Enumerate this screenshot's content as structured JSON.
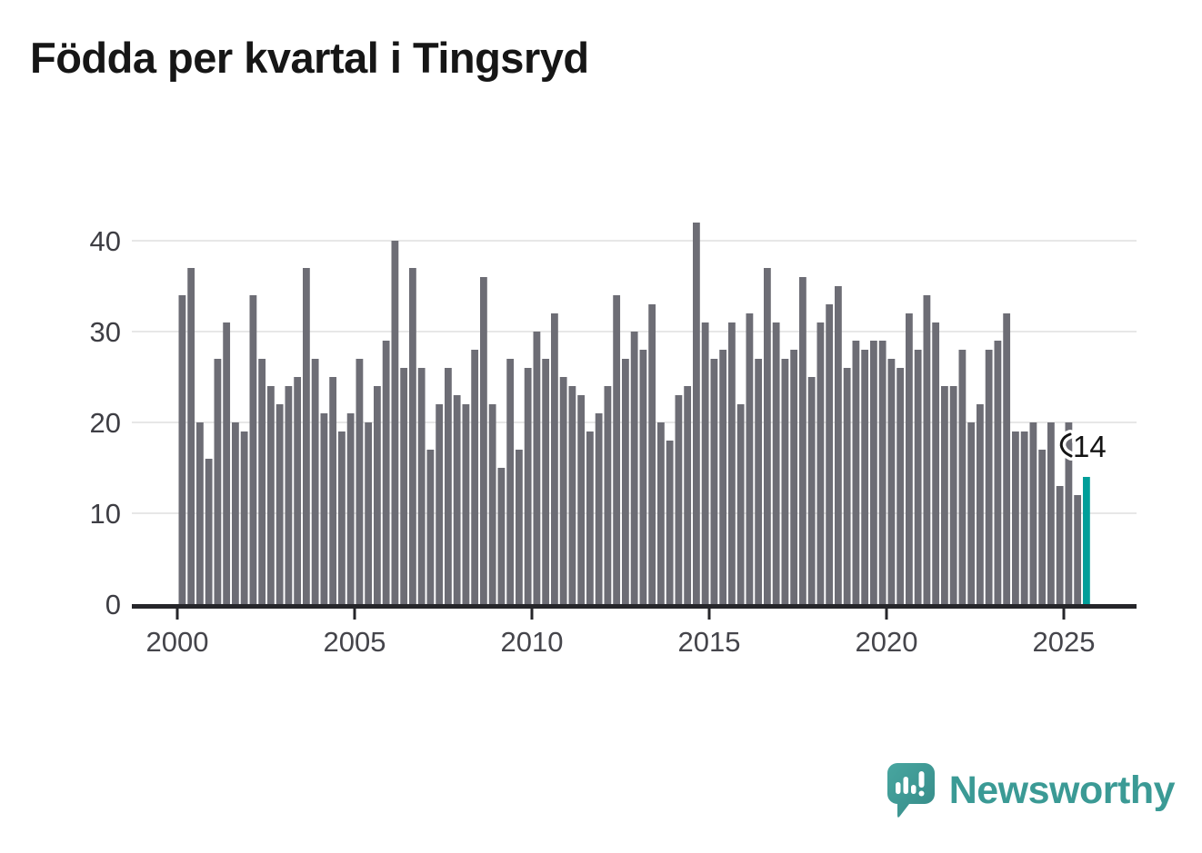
{
  "chart_data": {
    "type": "bar",
    "title": "Födda per kvartal i Tingsryd",
    "x_start": "2000 Q1",
    "x_end": "2025 Q3",
    "frequency": "quarterly",
    "values": [
      34,
      37,
      20,
      16,
      27,
      31,
      20,
      19,
      34,
      27,
      24,
      22,
      24,
      25,
      37,
      27,
      21,
      25,
      19,
      21,
      27,
      20,
      24,
      29,
      40,
      26,
      37,
      26,
      17,
      22,
      26,
      23,
      22,
      28,
      36,
      22,
      15,
      27,
      17,
      26,
      30,
      27,
      32,
      25,
      24,
      23,
      19,
      21,
      24,
      34,
      27,
      30,
      28,
      33,
      20,
      18,
      23,
      24,
      42,
      31,
      27,
      28,
      31,
      22,
      32,
      27,
      37,
      31,
      27,
      28,
      36,
      25,
      31,
      33,
      35,
      26,
      29,
      28,
      29,
      29,
      27,
      26,
      32,
      28,
      34,
      31,
      24,
      24,
      28,
      20,
      22,
      28,
      29,
      32,
      19,
      19,
      20,
      17,
      20,
      13,
      20,
      12,
      14
    ],
    "x_tick_labels": [
      "2000",
      "2005",
      "2010",
      "2015",
      "2020",
      "2025"
    ],
    "y_tick_labels": [
      "0",
      "10",
      "20",
      "30",
      "40"
    ],
    "ylim": [
      0,
      44
    ],
    "grid": true,
    "legend": "none",
    "highlight": {
      "index": 102,
      "label": "14"
    },
    "colors": {
      "bar": "#6d6d75",
      "highlight": "#009e99",
      "grid": "#e7e7e7",
      "axis": "#26262a",
      "x_tick_label": "#45454b",
      "y_tick_label": "#3e3e44",
      "annotation": "#141414"
    }
  },
  "branding": {
    "name": "Newsworthy",
    "color": "#3b9a95",
    "icon": "newsworthy-speech-bubble-chart-icon",
    "icon_bubble_color": "#3f9e98",
    "icon_glyph_color": "#ffffff"
  }
}
